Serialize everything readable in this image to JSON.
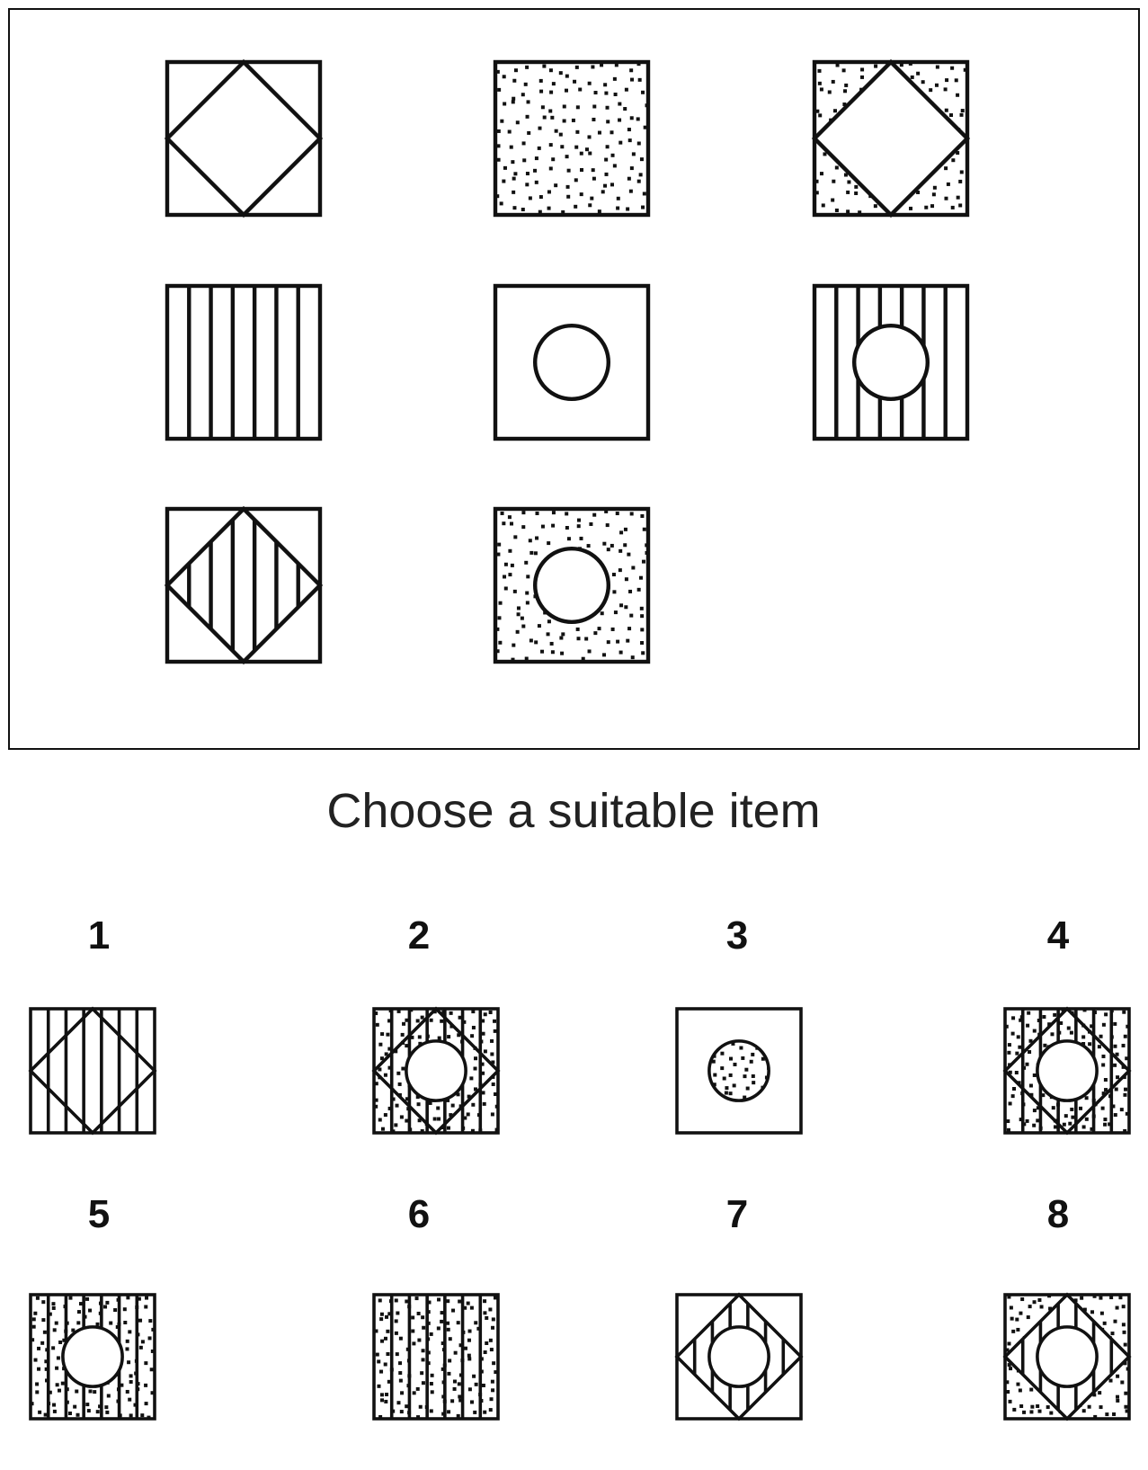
{
  "prompt": "Choose a suitable item",
  "colors": {
    "ink": "#111111",
    "background": "#ffffff",
    "panel_border": "#111111",
    "prompt_text": "#222222"
  },
  "matrix": {
    "rows": 3,
    "cols": 3,
    "cells": [
      {
        "pattern": [
          "diamond"
        ]
      },
      {
        "pattern": [
          "dots"
        ]
      },
      {
        "pattern": [
          "dots-outside-diamond",
          "diamond"
        ]
      },
      {
        "pattern": [
          "vertical-lines"
        ]
      },
      {
        "pattern": [
          "circle"
        ]
      },
      {
        "pattern": [
          "vertical-lines",
          "circle"
        ]
      },
      {
        "pattern": [
          "vertical-lines-inside-diamond",
          "diamond"
        ]
      },
      {
        "pattern": [
          "dots",
          "circle"
        ]
      },
      {
        "pattern": [
          "missing"
        ]
      }
    ]
  },
  "options": [
    {
      "number": "1",
      "pattern": [
        "vertical-lines",
        "diamond"
      ]
    },
    {
      "number": "2",
      "pattern": [
        "dots",
        "vertical-lines",
        "diamond",
        "circle"
      ]
    },
    {
      "number": "3",
      "pattern": [
        "filled-dots-circle"
      ]
    },
    {
      "number": "4",
      "pattern": [
        "dots",
        "vertical-lines",
        "diamond",
        "circle"
      ]
    },
    {
      "number": "5",
      "pattern": [
        "dots",
        "vertical-lines",
        "circle"
      ]
    },
    {
      "number": "6",
      "pattern": [
        "dots",
        "vertical-lines"
      ]
    },
    {
      "number": "7",
      "pattern": [
        "vertical-lines-inside-diamond",
        "diamond",
        "circle"
      ]
    },
    {
      "number": "8",
      "pattern": [
        "dots-outside-diamond",
        "vertical-lines-inside-diamond",
        "diamond",
        "circle"
      ]
    }
  ]
}
